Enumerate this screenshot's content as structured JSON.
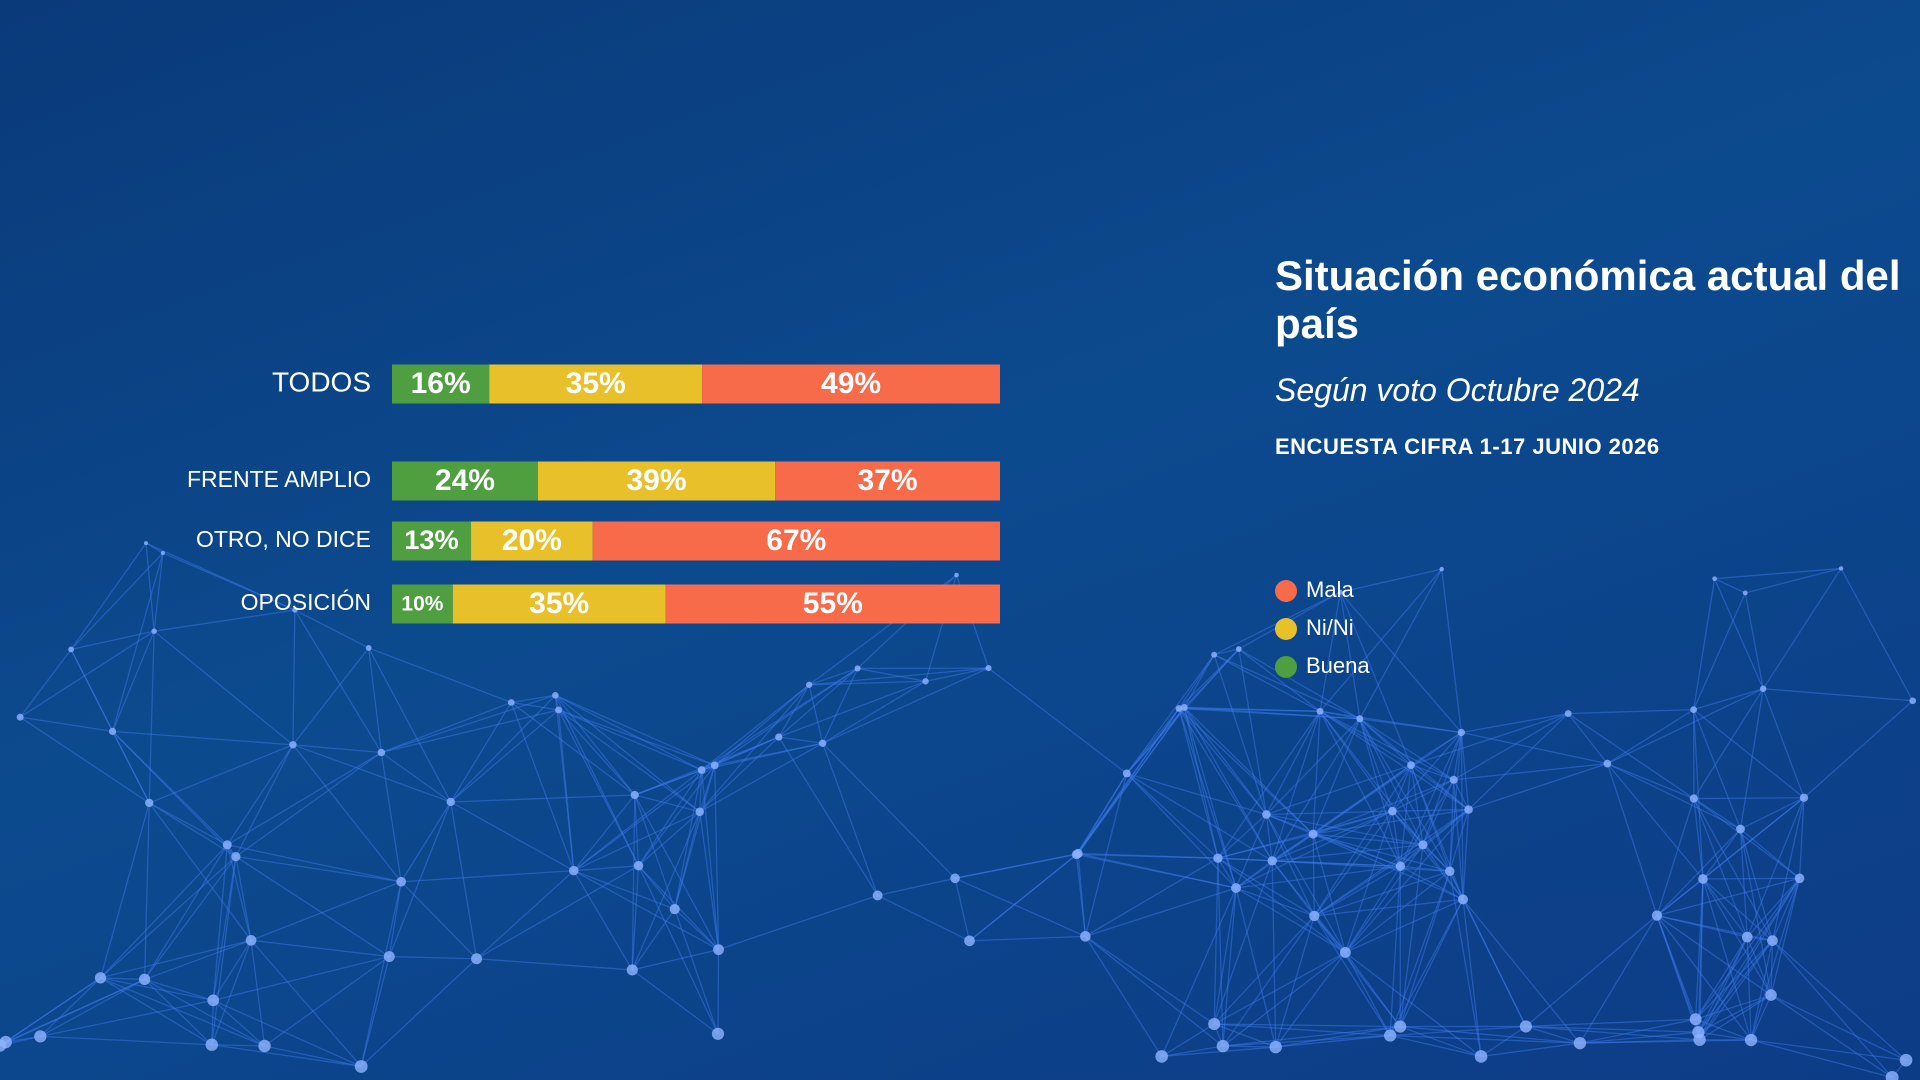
{
  "chart_data": {
    "type": "stacked-bar-horizontal",
    "title": "Situación económica actual del país",
    "subtitle": "Según voto Octubre 2024",
    "note": "ENCUESTA CIFRA 1-17 JUNIO 2026",
    "categories": [
      "TODOS",
      "FRENTE AMPLIO",
      "OTRO, NO DICE",
      "OPOSICIÓN"
    ],
    "series": [
      {
        "name": "Buena",
        "color": "#4f9e3f",
        "values": [
          16,
          24,
          13,
          10
        ],
        "value_labels": [
          "16%",
          "24%",
          "13%",
          "10%"
        ]
      },
      {
        "name": "Ni/Ni",
        "color": "#e8c12a",
        "values": [
          35,
          39,
          20,
          35
        ],
        "value_labels": [
          "35%",
          "39%",
          "20%",
          "35%"
        ]
      },
      {
        "name": "Mala",
        "color": "#f76a4a",
        "values": [
          49,
          37,
          67,
          55
        ],
        "value_labels": [
          "49%",
          "37%",
          "67%",
          "55%"
        ]
      }
    ],
    "legend_order": [
      "Mala",
      "Ni/Ni",
      "Buena"
    ]
  }
}
